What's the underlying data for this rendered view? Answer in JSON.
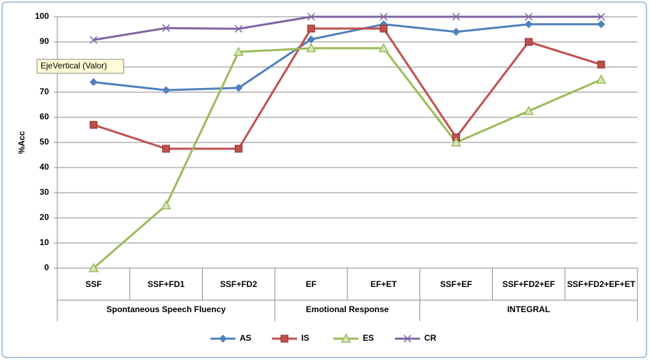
{
  "chart_data": {
    "type": "line",
    "y_label": "%Acc",
    "tooltip": "EjeVertical (Valor)",
    "categories": [
      "SSF",
      "SSF+FD1",
      "SSF+FD2",
      "EF",
      "EF+ET",
      "SSF+EF",
      "SSF+FD2+EF",
      "SSF+FD2+EF+ET"
    ],
    "groups": [
      {
        "label": "Spontaneous Speech Fluency",
        "span": 3
      },
      {
        "label": "Emotional Response",
        "span": 2
      },
      {
        "label": "INTEGRAL",
        "span": 3
      }
    ],
    "series": [
      {
        "name": "AS",
        "color": "#4f81bd",
        "marker": "diamond",
        "values": [
          74,
          70.8,
          71.7,
          91,
          97,
          94,
          97,
          97
        ]
      },
      {
        "name": "IS",
        "color": "#c0504d",
        "marker": "square",
        "values": [
          57,
          47.5,
          47.5,
          95.3,
          95.3,
          52,
          90,
          81
        ]
      },
      {
        "name": "ES",
        "color": "#9bbb59",
        "marker": "triangle",
        "values": [
          0,
          25,
          86,
          87.5,
          87.5,
          50,
          62.5,
          75
        ]
      },
      {
        "name": "CR",
        "color": "#8064a2",
        "marker": "x",
        "values": [
          90.8,
          95.5,
          95.2,
          100,
          100,
          100,
          100,
          100
        ]
      }
    ],
    "ylim": [
      0,
      100
    ],
    "yticks": [
      0,
      10,
      20,
      30,
      40,
      50,
      60,
      70,
      80,
      90,
      100
    ],
    "grid": true,
    "legend": "bottom"
  }
}
